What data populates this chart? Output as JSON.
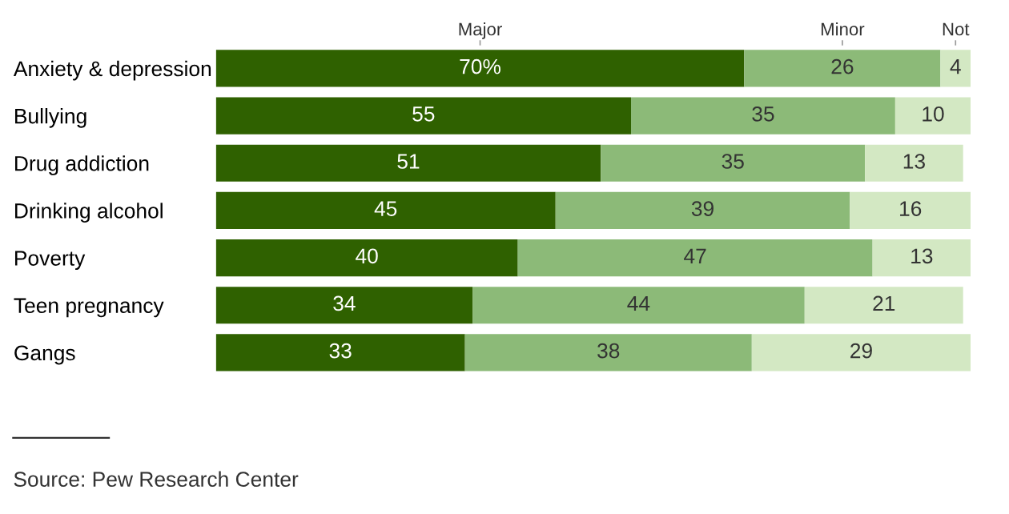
{
  "chart_data": {
    "type": "bar",
    "orientation": "horizontal",
    "stacked": true,
    "categories": [
      "Anxiety & depression",
      "Bullying",
      "Drug addiction",
      "Drinking alcohol",
      "Poverty",
      "Teen pregnancy",
      "Gangs"
    ],
    "series": [
      {
        "name": "Major",
        "color": "#2f6100",
        "values": [
          70,
          55,
          51,
          45,
          40,
          34,
          33
        ],
        "value_labels": [
          "70%",
          "55",
          "51",
          "45",
          "40",
          "34",
          "33"
        ]
      },
      {
        "name": "Minor",
        "color": "#8cba78",
        "values": [
          26,
          35,
          35,
          39,
          47,
          44,
          38
        ],
        "value_labels": [
          "26",
          "35",
          "35",
          "39",
          "47",
          "44",
          "38"
        ]
      },
      {
        "name": "Not",
        "color": "#d3e8c3",
        "values": [
          4,
          10,
          13,
          16,
          13,
          21,
          29
        ],
        "value_labels": [
          "4",
          "10",
          "13",
          "16",
          "13",
          "21",
          "29"
        ]
      }
    ],
    "annotations": [
      "Source: Pew Research Center"
    ]
  }
}
